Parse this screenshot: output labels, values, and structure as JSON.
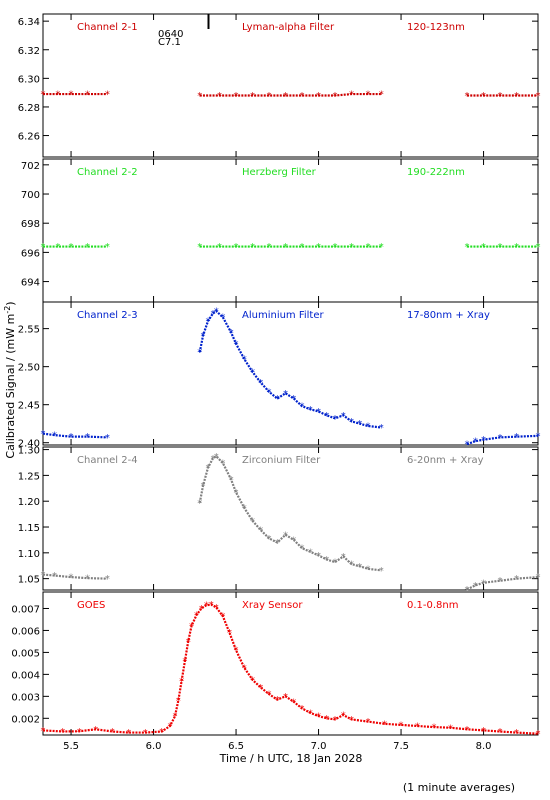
{
  "figure": {
    "ylabel": "Calibrated Signal / (mW m",
    "ylabel_sup": "-2",
    "ylabel_close": ")",
    "xlabel": "Time / h UTC, 18 Jan 2028",
    "footer": "(1 minute averages)",
    "annotation_lines": [
      "0640",
      "C7.1"
    ]
  },
  "chart_data": [
    {
      "type": "scatter",
      "channel": "Channel 2-1",
      "filter": "Lyman-alpha Filter",
      "band": "120-123nm",
      "color": "#cc0000",
      "ylim": [
        6.245,
        6.345
      ],
      "yticks": [
        "6.26",
        "6.28",
        "6.30",
        "6.32",
        "6.34"
      ],
      "ytick_values": [
        6.26,
        6.28,
        6.3,
        6.32,
        6.34
      ],
      "x": [
        5.33,
        5.42,
        5.5,
        5.6,
        5.72,
        6.28,
        6.4,
        6.5,
        6.6,
        6.7,
        6.8,
        6.9,
        7.0,
        7.1,
        7.2,
        7.3,
        7.38,
        7.9,
        8.0,
        8.1,
        8.2,
        8.33
      ],
      "y": [
        6.289,
        6.289,
        6.289,
        6.289,
        6.289,
        6.288,
        6.288,
        6.288,
        6.288,
        6.288,
        6.288,
        6.288,
        6.288,
        6.288,
        6.289,
        6.289,
        6.289,
        6.288,
        6.288,
        6.288,
        6.288,
        6.288
      ]
    },
    {
      "type": "scatter",
      "channel": "Channel 2-2",
      "filter": "Herzberg Filter",
      "band": "190-222nm",
      "color": "#22dd22",
      "ylim": [
        692.6,
        702.4
      ],
      "yticks": [
        "694",
        "696",
        "698",
        "700",
        "702"
      ],
      "ytick_values": [
        694,
        696,
        698,
        700,
        702
      ],
      "x": [
        5.33,
        5.42,
        5.5,
        5.6,
        5.72,
        6.28,
        6.4,
        6.5,
        6.6,
        6.7,
        6.8,
        6.9,
        7.0,
        7.1,
        7.2,
        7.3,
        7.38,
        7.9,
        8.0,
        8.1,
        8.2,
        8.33
      ],
      "y": [
        696.4,
        696.4,
        696.4,
        696.4,
        696.4,
        696.4,
        696.4,
        696.4,
        696.4,
        696.4,
        696.4,
        696.4,
        696.4,
        696.4,
        696.4,
        696.4,
        696.4,
        696.4,
        696.4,
        696.4,
        696.4,
        696.4
      ]
    },
    {
      "type": "scatter",
      "channel": "Channel 2-3",
      "filter": "Aluminium Filter",
      "band": "17-80nm + Xray",
      "color": "#0022cc",
      "ylim": [
        2.397,
        2.585
      ],
      "yticks": [
        "2.40",
        "2.45",
        "2.50",
        "2.55"
      ],
      "ytick_values": [
        2.4,
        2.45,
        2.5,
        2.55
      ],
      "x": [
        5.33,
        5.4,
        5.5,
        5.6,
        5.72,
        6.28,
        6.3,
        6.33,
        6.36,
        6.38,
        6.42,
        6.47,
        6.5,
        6.55,
        6.6,
        6.65,
        6.7,
        6.75,
        6.8,
        6.85,
        6.9,
        6.95,
        7.0,
        7.05,
        7.1,
        7.15,
        7.2,
        7.25,
        7.3,
        7.38,
        7.9,
        7.95,
        8.0,
        8.1,
        8.2,
        8.33
      ],
      "y": [
        2.412,
        2.41,
        2.408,
        2.408,
        2.407,
        2.519,
        2.541,
        2.56,
        2.57,
        2.573,
        2.565,
        2.545,
        2.53,
        2.51,
        2.493,
        2.479,
        2.467,
        2.458,
        2.465,
        2.458,
        2.448,
        2.444,
        2.441,
        2.436,
        2.432,
        2.436,
        2.428,
        2.425,
        2.422,
        2.42,
        2.398,
        2.402,
        2.404,
        2.407,
        2.408,
        2.409
      ]
    },
    {
      "type": "scatter",
      "channel": "Channel 2-4",
      "filter": "Zirconium Filter",
      "band": "6-20nm + Xray",
      "color": "#808080",
      "ylim": [
        1.028,
        1.305
      ],
      "yticks": [
        "1.05",
        "1.10",
        "1.15",
        "1.20",
        "1.25",
        "1.30"
      ],
      "ytick_values": [
        1.05,
        1.1,
        1.15,
        1.2,
        1.25,
        1.3
      ],
      "x": [
        5.33,
        5.4,
        5.5,
        5.6,
        5.72,
        6.28,
        6.3,
        6.33,
        6.36,
        6.38,
        6.42,
        6.47,
        6.5,
        6.55,
        6.6,
        6.65,
        6.7,
        6.75,
        6.8,
        6.85,
        6.9,
        6.95,
        7.0,
        7.05,
        7.1,
        7.15,
        7.2,
        7.25,
        7.3,
        7.38,
        7.9,
        7.95,
        8.0,
        8.1,
        8.2,
        8.33
      ],
      "y": [
        1.058,
        1.056,
        1.053,
        1.051,
        1.05,
        1.197,
        1.23,
        1.265,
        1.283,
        1.287,
        1.274,
        1.242,
        1.217,
        1.187,
        1.162,
        1.144,
        1.128,
        1.12,
        1.135,
        1.125,
        1.109,
        1.102,
        1.095,
        1.087,
        1.082,
        1.093,
        1.078,
        1.074,
        1.069,
        1.066,
        1.029,
        1.037,
        1.042,
        1.046,
        1.05,
        1.053
      ]
    },
    {
      "type": "scatter",
      "channel": "GOES",
      "filter": "Xray Sensor",
      "band": "0.1-0.8nm",
      "color": "#ee0000",
      "ylim": [
        0.00124,
        0.00775
      ],
      "yticks": [
        "0.002",
        "0.003",
        "0.004",
        "0.005",
        "0.006",
        "0.007"
      ],
      "ytick_values": [
        0.002,
        0.003,
        0.004,
        0.005,
        0.006,
        0.007
      ],
      "x": [
        5.33,
        5.45,
        5.55,
        5.65,
        5.75,
        5.85,
        5.95,
        6.05,
        6.1,
        6.13,
        6.15,
        6.17,
        6.19,
        6.21,
        6.23,
        6.26,
        6.29,
        6.32,
        6.35,
        6.38,
        6.42,
        6.46,
        6.5,
        6.55,
        6.6,
        6.65,
        6.7,
        6.75,
        6.8,
        6.85,
        6.9,
        6.95,
        7.0,
        7.05,
        7.1,
        7.15,
        7.2,
        7.3,
        7.4,
        7.5,
        7.6,
        7.7,
        7.8,
        7.9,
        8.0,
        8.1,
        8.2,
        8.33
      ],
      "y": [
        0.00145,
        0.0014,
        0.00141,
        0.0015,
        0.0014,
        0.00135,
        0.00135,
        0.0014,
        0.00165,
        0.0021,
        0.0028,
        0.0037,
        0.0046,
        0.0055,
        0.0062,
        0.0067,
        0.007,
        0.00715,
        0.00717,
        0.00705,
        0.00665,
        0.0059,
        0.0051,
        0.0043,
        0.00375,
        0.0034,
        0.0031,
        0.00285,
        0.003,
        0.00275,
        0.00245,
        0.00225,
        0.0021,
        0.002,
        0.00195,
        0.00215,
        0.00195,
        0.00185,
        0.00175,
        0.0017,
        0.00165,
        0.0016,
        0.00157,
        0.0015,
        0.00145,
        0.0014,
        0.00135,
        0.0013
      ]
    }
  ],
  "x_axis": {
    "xlim": [
      5.33,
      8.33
    ],
    "ticks": [
      5.5,
      6.0,
      6.5,
      7.0,
      7.5,
      8.0
    ],
    "tick_labels": [
      "5.5",
      "6.0",
      "6.5",
      "7.0",
      "7.5",
      "8.0"
    ]
  },
  "flare_marker_x": 6.333
}
